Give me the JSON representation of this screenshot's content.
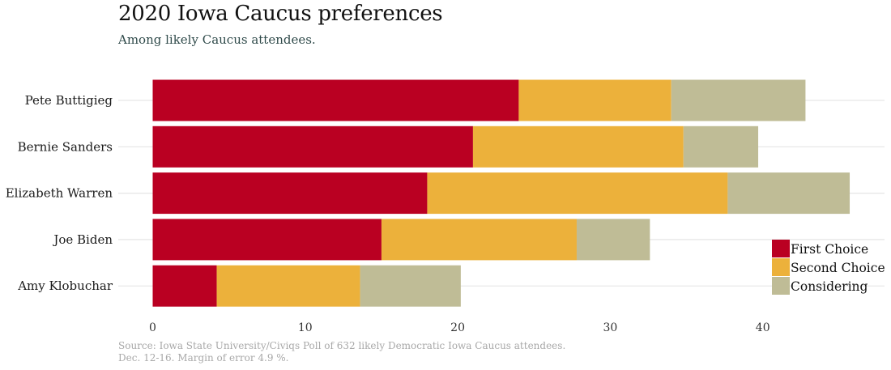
{
  "chart_data": {
    "type": "bar",
    "orientation": "horizontal",
    "stacked": true,
    "title": "2020 Iowa Caucus preferences",
    "subtitle": "Among likely Caucus attendees.",
    "caption_lines": [
      "Source: Iowa State University/Civiqs Poll of 632 likely Democratic Iowa Caucus attendees.",
      "Dec. 12-16.  Margin of error 4.9 %."
    ],
    "xlabel": "",
    "ylabel": "",
    "xlim": [
      0,
      48
    ],
    "xticks": [
      0,
      10,
      20,
      30,
      40
    ],
    "xtick_labels": [
      "0",
      "10",
      "20",
      "30",
      "40"
    ],
    "grid": "horizontal-only",
    "legend_position": "bottom-right",
    "categories": [
      "Pete Buttigieg",
      "Bernie Sanders",
      "Elizabeth Warren",
      "Joe Biden",
      "Amy Klobuchar"
    ],
    "series": [
      {
        "name": "First Choice",
        "color": "#BA0022",
        "values": [
          24,
          21,
          18,
          15,
          4.2
        ]
      },
      {
        "name": "Second Choice",
        "color": "#ECB13B",
        "values": [
          10,
          13.8,
          19.7,
          12.8,
          9.4
        ]
      },
      {
        "name": "Considering",
        "color": "#BFBC96",
        "values": [
          8.8,
          4.9,
          8,
          4.8,
          6.6
        ]
      }
    ]
  }
}
